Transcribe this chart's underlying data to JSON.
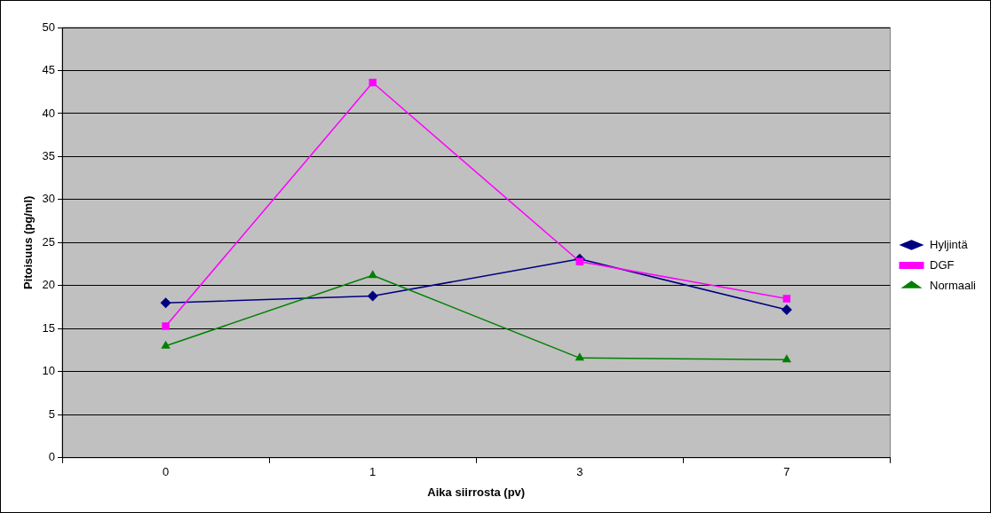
{
  "chart_data": {
    "type": "line",
    "xlabel": "Aika siirrosta (pv)",
    "ylabel": "Pitoisuus (pg/ml)",
    "categories": [
      "0",
      "1",
      "3",
      "7"
    ],
    "series": [
      {
        "name": "Hyljintä",
        "color": "#000080",
        "values": [
          18.0,
          18.8,
          23.1,
          17.2
        ],
        "marker": "diamond"
      },
      {
        "name": "DGF",
        "color": "#ff00ff",
        "values": [
          15.3,
          43.6,
          22.8,
          18.5
        ],
        "marker": "square"
      },
      {
        "name": "Normaali",
        "color": "#008000",
        "values": [
          13.0,
          21.2,
          11.6,
          11.4
        ],
        "marker": "triangle"
      }
    ],
    "ylim": [
      0,
      50
    ],
    "yticks": [
      0,
      5,
      10,
      15,
      20,
      25,
      30,
      35,
      40,
      45,
      50
    ],
    "grid": "y",
    "legend": "right",
    "line_style": "solid"
  }
}
